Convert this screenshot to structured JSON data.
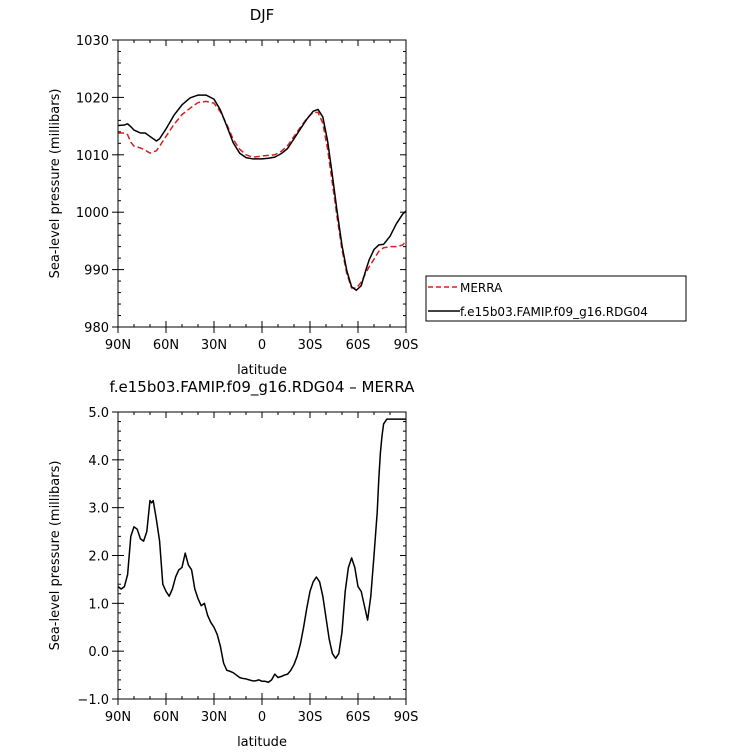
{
  "chart_data": [
    {
      "type": "line",
      "title": "DJF",
      "xlabel": "latitude",
      "ylabel": "Sea-level pressure (millibars)",
      "xlim": [
        90,
        -90
      ],
      "ylim": [
        980,
        1030
      ],
      "xtick_labels": [
        "90N",
        "60N",
        "30N",
        "0",
        "30S",
        "60S",
        "90S"
      ],
      "xticks": [
        90,
        60,
        30,
        0,
        -30,
        -60,
        -90
      ],
      "ytick_labels": [
        "980",
        "990",
        "1000",
        "1010",
        "1020",
        "1030"
      ],
      "yticks": [
        980,
        990,
        1000,
        1010,
        1020,
        1030
      ],
      "legend": {
        "placement": "right-outside"
      },
      "series": [
        {
          "name": "MERRA",
          "color": "#dd1c1c",
          "dash": "dashed",
          "x": [
            90,
            86,
            84,
            82,
            80,
            76,
            73,
            70,
            66,
            64,
            60,
            55,
            50,
            45,
            40,
            35,
            30,
            26,
            22,
            18,
            14,
            10,
            6,
            2,
            0,
            -4,
            -8,
            -12,
            -16,
            -20,
            -24,
            -28,
            -32,
            -35,
            -38,
            -41,
            -44,
            -47,
            -50,
            -53,
            -56,
            -59,
            -62,
            -65,
            -67,
            -70,
            -73,
            -76,
            -80,
            -84,
            -88,
            -90
          ],
          "y": [
            1013.8,
            1013.8,
            1013.5,
            1012.2,
            1011.5,
            1011.2,
            1010.8,
            1010.3,
            1010.7,
            1011.5,
            1013.2,
            1015.3,
            1017.0,
            1018.1,
            1019.1,
            1019.3,
            1019.0,
            1017.5,
            1015.3,
            1012.7,
            1011.0,
            1010.0,
            1009.6,
            1009.7,
            1009.8,
            1009.9,
            1010.0,
            1010.6,
            1011.6,
            1013.2,
            1014.8,
            1016.3,
            1017.4,
            1017.4,
            1015.5,
            1011.0,
            1005.0,
            999.0,
            993.5,
            989.3,
            986.8,
            986.8,
            987.8,
            989.5,
            990.5,
            991.8,
            993.2,
            993.8,
            994.0,
            994.0,
            994.3,
            995.0
          ]
        },
        {
          "name": "f.e15b03.FAMIP.f09_g16.RDG04",
          "color": "#000000",
          "dash": "solid",
          "x": [
            90,
            86,
            84,
            82,
            80,
            76,
            73,
            70,
            66,
            64,
            60,
            55,
            50,
            45,
            40,
            35,
            30,
            26,
            22,
            18,
            14,
            10,
            6,
            2,
            0,
            -4,
            -8,
            -12,
            -16,
            -20,
            -24,
            -28,
            -32,
            -35,
            -38,
            -41,
            -44,
            -47,
            -50,
            -53,
            -56,
            -59,
            -62,
            -65,
            -67,
            -70,
            -73,
            -76,
            -80,
            -84,
            -88,
            -90
          ],
          "y": [
            1015.1,
            1015.2,
            1015.4,
            1014.9,
            1014.3,
            1013.8,
            1013.8,
            1013.2,
            1012.4,
            1012.8,
            1014.5,
            1016.9,
            1018.7,
            1019.9,
            1020.4,
            1020.4,
            1019.7,
            1017.8,
            1015.0,
            1012.1,
            1010.3,
            1009.5,
            1009.3,
            1009.3,
            1009.3,
            1009.4,
            1009.6,
            1010.2,
            1011.1,
            1012.8,
            1014.5,
            1016.2,
            1017.6,
            1017.9,
            1016.6,
            1012.4,
            1006.4,
            1000.0,
            994.2,
            989.8,
            987.0,
            986.4,
            987.2,
            990.0,
            991.7,
            993.5,
            994.3,
            994.4,
            995.8,
            998.0,
            999.7,
            1000.2
          ]
        }
      ]
    },
    {
      "type": "line",
      "title": "f.e15b03.FAMIP.f09_g16.RDG04 – MERRA",
      "xlabel": "latitude",
      "ylabel": "Sea-level pressure (millibars)",
      "xlim": [
        90,
        -90
      ],
      "ylim": [
        -1.0,
        5.0
      ],
      "xtick_labels": [
        "90N",
        "60N",
        "30N",
        "0",
        "30S",
        "60S",
        "90S"
      ],
      "xticks": [
        90,
        60,
        30,
        0,
        -30,
        -60,
        -90
      ],
      "ytick_labels": [
        "−1.0",
        "0.0",
        "1.0",
        "2.0",
        "3.0",
        "4.0",
        "5.0"
      ],
      "yticks": [
        -1,
        0,
        1,
        2,
        3,
        4,
        5
      ],
      "series": [
        {
          "color": "#000000",
          "dash": "solid",
          "x": [
            90,
            88,
            86,
            84,
            82,
            80,
            78,
            76,
            74,
            72,
            70,
            69,
            68,
            67,
            66,
            64,
            62,
            60,
            58,
            56,
            54,
            52,
            50,
            48,
            46,
            44,
            43,
            42,
            40,
            38,
            36,
            34,
            32,
            30,
            28,
            26,
            24,
            22,
            20,
            18,
            16,
            14,
            12,
            10,
            8,
            6,
            4,
            2,
            0,
            -2,
            -4,
            -6,
            -8,
            -10,
            -12,
            -14,
            -16,
            -18,
            -20,
            -22,
            -24,
            -26,
            -28,
            -30,
            -32,
            -34,
            -36,
            -38,
            -40,
            -42,
            -44,
            -46,
            -48,
            -50,
            -52,
            -54,
            -56,
            -58,
            -60,
            -62,
            -64,
            -66,
            -68,
            -70,
            -72,
            -73,
            -74,
            -75,
            -76,
            -78,
            -80,
            -82,
            -84,
            -86,
            -88,
            -90
          ],
          "y": [
            1.35,
            1.3,
            1.35,
            1.6,
            2.4,
            2.6,
            2.55,
            2.35,
            2.3,
            2.5,
            3.15,
            3.1,
            3.15,
            2.95,
            2.75,
            2.3,
            1.4,
            1.25,
            1.15,
            1.3,
            1.55,
            1.7,
            1.75,
            2.05,
            1.8,
            1.7,
            1.5,
            1.3,
            1.1,
            0.95,
            1.0,
            0.75,
            0.6,
            0.5,
            0.35,
            0.1,
            -0.25,
            -0.4,
            -0.42,
            -0.45,
            -0.5,
            -0.55,
            -0.57,
            -0.58,
            -0.6,
            -0.62,
            -0.62,
            -0.6,
            -0.63,
            -0.63,
            -0.65,
            -0.6,
            -0.48,
            -0.55,
            -0.53,
            -0.5,
            -0.48,
            -0.4,
            -0.28,
            -0.1,
            0.15,
            0.5,
            0.9,
            1.25,
            1.45,
            1.55,
            1.45,
            1.15,
            0.7,
            0.25,
            -0.05,
            -0.15,
            -0.05,
            0.4,
            1.25,
            1.75,
            1.95,
            1.75,
            1.35,
            1.25,
            0.95,
            0.65,
            1.15,
            2.0,
            2.9,
            3.6,
            4.15,
            4.5,
            4.75,
            4.85,
            4.85,
            4.85,
            4.85,
            4.85,
            4.85,
            4.85
          ]
        }
      ]
    }
  ]
}
